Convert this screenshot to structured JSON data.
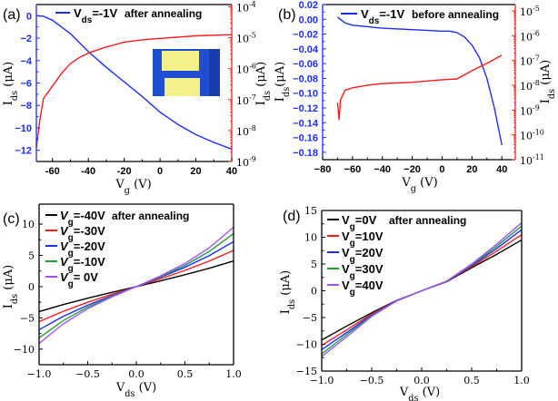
{
  "colors": {
    "blue": "#1a2cff",
    "red": "#ff1a1a",
    "black": "#000000",
    "green": "#1f9e3a",
    "purple": "#a452ff",
    "inset_bg": "#1f4fd0",
    "inset_pad": "#f4f08a"
  },
  "chart_data": [
    {
      "panel_label": "(a)",
      "type": "line",
      "xlabel": {
        "main": "V",
        "sub": "g",
        "unit": " (V)"
      },
      "ylabel": {
        "main": "I",
        "sub": "ds",
        "unit": " (μA)"
      },
      "y2label": {
        "main": "I",
        "sub": "ds",
        "unit": " (μA)"
      },
      "xlim": [
        -69,
        40
      ],
      "ylim": [
        -13,
        1
      ],
      "y2lim": [
        1e-09,
        0.000118
      ],
      "y2scale": "log",
      "xticks": [
        -60,
        -40,
        -20,
        0,
        20,
        40
      ],
      "xtick_labels": [
        "-60",
        "-40",
        "-20",
        "0",
        "20",
        "40"
      ],
      "yticks": [
        0,
        -2,
        -4,
        -6,
        -8,
        -10,
        -12
      ],
      "ytick_labels": [
        "0",
        "−2",
        "−4",
        "−6",
        "−8",
        "−10",
        "−12"
      ],
      "y2ticks": [
        -4,
        -5,
        -6,
        -7,
        -8,
        -9
      ],
      "legend": {
        "pre": "V",
        "sub": "ds",
        "post": "=-1V",
        "note": "after annealing"
      },
      "inset": "optical-micrograph",
      "series": [
        {
          "axis": "left",
          "color": "blue",
          "x": [
            -69,
            -65,
            -60,
            -50,
            -40,
            -30,
            -20,
            -10,
            0,
            10,
            20,
            30,
            40
          ],
          "y": [
            0,
            -0.05,
            -0.4,
            -1.6,
            -3.2,
            -4.6,
            -5.9,
            -7.2,
            -8.6,
            -9.7,
            -10.6,
            -11.3,
            -11.9
          ]
        },
        {
          "axis": "right",
          "color": "red",
          "x": [
            -69,
            -67,
            -65,
            -60,
            -55,
            -50,
            -45,
            -40,
            -30,
            -20,
            -10,
            0,
            20,
            40
          ],
          "y": [
            2.8e-09,
            2.3e-08,
            1.1e-07,
            2.75e-07,
            7e-07,
            1.45e-06,
            2.3e-06,
            3.2e-06,
            5e-06,
            7.2e-06,
            8.5e-06,
            9.5e-06,
            1.15e-05,
            1.26e-05
          ]
        }
      ]
    },
    {
      "panel_label": "(b)",
      "type": "line",
      "xlabel": {
        "main": "V",
        "sub": "g",
        "unit": " (V)"
      },
      "ylabel": {
        "main": "I",
        "sub": "ds",
        "unit": "(μA)"
      },
      "y2label": {
        "main": "I",
        "sub": "ds",
        "unit": " (μA)"
      },
      "xlim": [
        -80,
        49
      ],
      "ylim": [
        -0.19,
        0.02
      ],
      "y2lim": [
        1e-11,
        1.8e-05
      ],
      "y2scale": "log",
      "xticks": [
        -80,
        -60,
        -40,
        -20,
        0,
        20,
        40
      ],
      "xtick_labels": [
        "−80",
        "−60",
        "−40",
        "−20",
        "0",
        "20",
        "40"
      ],
      "yticks": [
        0.02,
        0,
        -0.02,
        -0.04,
        -0.06,
        -0.08,
        -0.1,
        -0.12,
        -0.14,
        -0.16,
        -0.18
      ],
      "ytick_labels": [
        "0.02",
        "0.00",
        "−0.02",
        "−0.04",
        "−0.06",
        "−0.08",
        "−0.10",
        "−0.12",
        "−0.14",
        "−0.16",
        "−0.18"
      ],
      "y2ticks": [
        -5,
        -6,
        -7,
        -8,
        -9,
        -10,
        -11
      ],
      "legend": {
        "pre": "V",
        "sub": "ds",
        "post": "=-1V",
        "note": "before annealing"
      },
      "series": [
        {
          "axis": "left",
          "color": "blue",
          "x": [
            -70,
            -65,
            -60,
            -40,
            -20,
            0,
            5,
            10,
            15,
            20,
            25,
            30,
            35,
            40
          ],
          "y": [
            0.003,
            -0.005,
            -0.008,
            -0.012,
            -0.014,
            -0.016,
            -0.016,
            -0.018,
            -0.024,
            -0.035,
            -0.052,
            -0.08,
            -0.12,
            -0.17
          ]
        },
        {
          "axis": "right",
          "color": "red",
          "x": [
            -70,
            -69,
            -68,
            -65,
            -60,
            -50,
            -40,
            -20,
            0,
            10,
            20,
            30,
            40
          ],
          "y": [
            2e-09,
            4.1e-10,
            2.6e-09,
            6.3e-09,
            7.9e-09,
            1e-08,
            1.17e-08,
            1.32e-08,
            1.66e-08,
            1.8e-08,
            3.9e-08,
            7.6e-08,
            1.62e-07
          ]
        }
      ]
    },
    {
      "panel_label": "(c)",
      "type": "line",
      "xlabel": {
        "main": "V",
        "sub": "ds",
        "unit": " (V)"
      },
      "ylabel": {
        "main": "I",
        "sub": "ds",
        "unit": " (μA)"
      },
      "xlim": [
        -1,
        1
      ],
      "ylim": [
        -12.5,
        13.2
      ],
      "xticks": [
        -1,
        -0.5,
        0,
        0.5,
        1
      ],
      "xtick_labels": [
        "−1.0",
        "−0.5",
        "0.0",
        "0.5",
        "1.0"
      ],
      "yticks": [
        10,
        5,
        0,
        -5,
        -10
      ],
      "ytick_labels": [
        "10",
        "5",
        "0",
        "−5",
        "−10"
      ],
      "legend_note": "after annealing",
      "series": [
        {
          "name": "Vg=-40V",
          "label": {
            "pre": "V",
            "sub": "g",
            "post": "=-40V"
          },
          "color": "black",
          "x": [
            -1,
            -0.75,
            -0.5,
            -0.25,
            0,
            0.25,
            0.5,
            0.75,
            1
          ],
          "y": [
            -4.0,
            -2.87,
            -1.85,
            -0.91,
            0,
            0.93,
            1.9,
            2.94,
            4.1
          ]
        },
        {
          "name": "Vg=-30V",
          "label": {
            "pre": "V",
            "sub": "g",
            "post": "=-30V"
          },
          "color": "red",
          "x": [
            -1,
            -0.75,
            -0.5,
            -0.25,
            0,
            0.25,
            0.5,
            0.75,
            1
          ],
          "y": [
            -5.6,
            -3.95,
            -2.51,
            -1.22,
            0,
            1.26,
            2.6,
            4.09,
            5.8
          ]
        },
        {
          "name": "Vg=-20V",
          "label": {
            "pre": "V",
            "sub": "g",
            "post": "=-20V"
          },
          "color": "blue",
          "x": [
            -1,
            -0.75,
            -0.5,
            -0.25,
            0,
            0.25,
            0.5,
            0.75,
            1
          ],
          "y": [
            -6.9,
            -4.75,
            -2.97,
            -1.43,
            0,
            1.49,
            3.1,
            4.96,
            7.2
          ]
        },
        {
          "name": "Vg=-10V",
          "label": {
            "pre": "V",
            "sub": "g",
            "post": "=-10V"
          },
          "color": "green",
          "x": [
            -1,
            -0.75,
            -0.5,
            -0.25,
            0,
            0.25,
            0.5,
            0.75,
            1
          ],
          "y": [
            -8.2,
            -5.43,
            -3.28,
            -1.53,
            0,
            1.59,
            3.4,
            5.63,
            8.5
          ]
        },
        {
          "name": "Vg= 0V",
          "label": {
            "pre": "V",
            "sub": "g",
            "post": "= 0V"
          },
          "color": "purple",
          "x": [
            -1,
            -0.75,
            -0.5,
            -0.25,
            0,
            0.25,
            0.5,
            0.75,
            1
          ],
          "y": [
            -9.1,
            -5.95,
            -3.54,
            -1.65,
            0,
            1.72,
            3.7,
            6.21,
            9.5
          ]
        }
      ]
    },
    {
      "panel_label": "(d)",
      "type": "line",
      "xlabel": {
        "main": "V",
        "sub": "ds",
        "unit": " (V)"
      },
      "ylabel": {
        "main": "I",
        "sub": "ds",
        "unit": " (μA)"
      },
      "xlim": [
        -1,
        1
      ],
      "ylim": [
        -15,
        15
      ],
      "xticks": [
        -1,
        -0.5,
        0,
        0.5,
        1
      ],
      "xtick_labels": [
        "−1.0",
        "−0.5",
        "0.0",
        "0.5",
        "1.0"
      ],
      "yticks": [
        15,
        10,
        5,
        0,
        -5,
        -10,
        -15
      ],
      "ytick_labels": [
        "15",
        "10",
        "5",
        "0",
        "−5",
        "−10",
        "−15"
      ],
      "legend_note": "after annealing",
      "series": [
        {
          "name": "Vg=0V",
          "label": {
            "pre": "V",
            "sub": "g",
            "post": "=0V"
          },
          "color": "black",
          "x": [
            -1,
            -0.75,
            -0.5,
            -0.25,
            0,
            0.25,
            0.5,
            0.75,
            1
          ],
          "y": [
            -9.2,
            -6.6,
            -4.1,
            -1.8,
            0,
            1.7,
            4.3,
            6.8,
            9.5
          ]
        },
        {
          "name": "Vg=10V",
          "label": {
            "pre": "V",
            "sub": "g",
            "post": "=10V"
          },
          "color": "red",
          "x": [
            -1,
            -0.75,
            -0.5,
            -0.25,
            0,
            0.25,
            0.5,
            0.75,
            1
          ],
          "y": [
            -10.2,
            -7.3,
            -4.3,
            -1.85,
            0,
            1.75,
            4.5,
            7.4,
            10.5
          ]
        },
        {
          "name": "Vg=20V",
          "label": {
            "pre": "V",
            "sub": "g",
            "post": "=20V"
          },
          "color": "blue",
          "x": [
            -1,
            -0.75,
            -0.5,
            -0.25,
            0,
            0.25,
            0.5,
            0.75,
            1
          ],
          "y": [
            -11.0,
            -7.8,
            -4.5,
            -1.85,
            0,
            1.75,
            4.7,
            7.9,
            11.4
          ]
        },
        {
          "name": "Vg=30V",
          "label": {
            "pre": "V",
            "sub": "g",
            "post": "=30V"
          },
          "color": "green",
          "x": [
            -1,
            -0.75,
            -0.5,
            -0.25,
            0,
            0.25,
            0.5,
            0.75,
            1
          ],
          "y": [
            -11.8,
            -8.2,
            -4.65,
            -1.9,
            0,
            1.8,
            4.85,
            8.3,
            12.1
          ]
        },
        {
          "name": "Vg=40V",
          "label": {
            "pre": "V",
            "sub": "g",
            "post": "=40V"
          },
          "color": "purple",
          "x": [
            -1,
            -0.75,
            -0.5,
            -0.25,
            0,
            0.25,
            0.5,
            0.75,
            1
          ],
          "y": [
            -12.3,
            -8.6,
            -4.8,
            -1.9,
            0,
            1.8,
            5.0,
            8.7,
            12.7
          ]
        }
      ]
    }
  ]
}
